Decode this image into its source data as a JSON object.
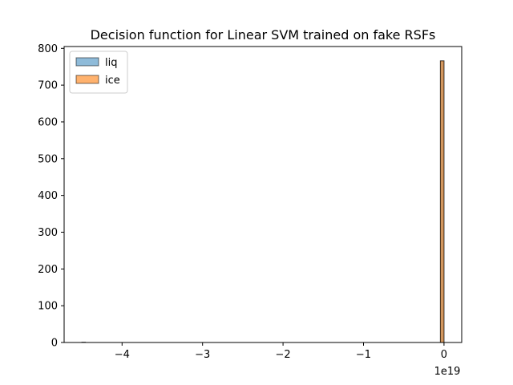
{
  "chart_data": {
    "type": "bar",
    "title": "Decision function for Linear SVM trained on fake RSFs",
    "xlabel": "",
    "ylabel": "",
    "x_scale_label": "1e19",
    "xlim": [
      -4.72,
      0.22
    ],
    "ylim": [
      0,
      805
    ],
    "xticks": [
      {
        "value": -4,
        "label": "−4"
      },
      {
        "value": -3,
        "label": "−3"
      },
      {
        "value": -2,
        "label": "−2"
      },
      {
        "value": -1,
        "label": "−1"
      },
      {
        "value": 0,
        "label": "0"
      }
    ],
    "yticks": [
      {
        "value": 0,
        "label": "0"
      },
      {
        "value": 100,
        "label": "100"
      },
      {
        "value": 200,
        "label": "200"
      },
      {
        "value": 300,
        "label": "300"
      },
      {
        "value": 400,
        "label": "400"
      },
      {
        "value": 500,
        "label": "500"
      },
      {
        "value": 600,
        "label": "600"
      },
      {
        "value": 700,
        "label": "700"
      },
      {
        "value": 800,
        "label": "800"
      }
    ],
    "legend_position": "upper-left",
    "grid": false,
    "series": [
      {
        "name": "liq",
        "color": "#1f77b4",
        "alpha": 0.5,
        "bins": [
          {
            "x0": -4.5,
            "x1": -4.455,
            "count": 1
          },
          {
            "x0": -0.045,
            "x1": 0.0,
            "count": 766
          }
        ]
      },
      {
        "name": "ice",
        "color": "#ff7f0e",
        "alpha": 0.6,
        "bins": [
          {
            "x0": -0.045,
            "x1": 0.0,
            "count": 766
          }
        ]
      }
    ]
  }
}
